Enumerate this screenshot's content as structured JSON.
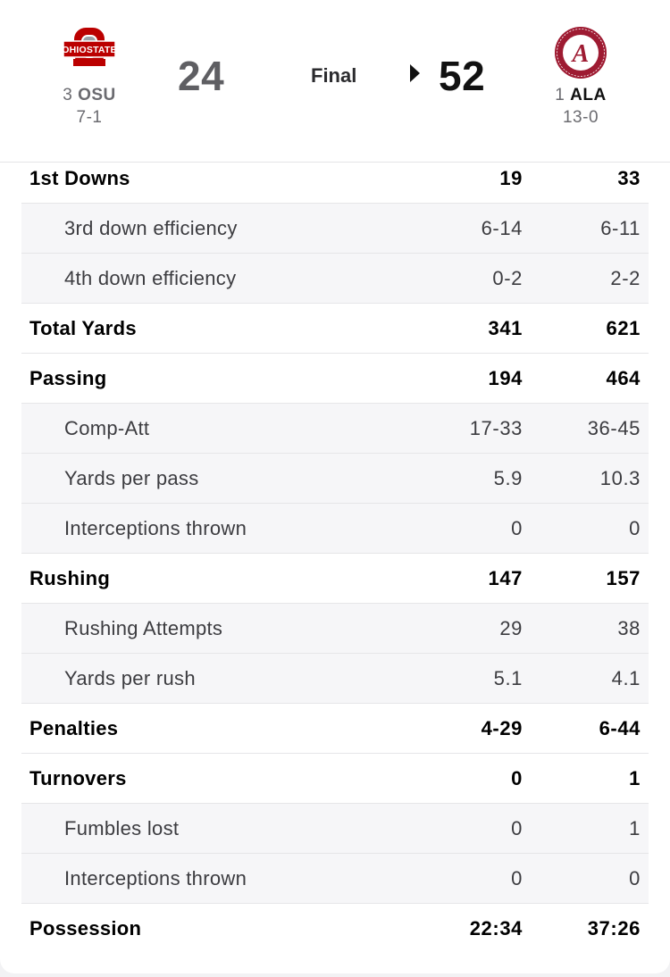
{
  "game": {
    "status": "Final",
    "away": {
      "rank": "3",
      "abbr": "OSU",
      "record": "7-1",
      "score": "24",
      "logo_icon": "ohio-state-logo-icon",
      "color": "#bb0000"
    },
    "home": {
      "rank": "1",
      "abbr": "ALA",
      "record": "13-0",
      "score": "52",
      "logo_icon": "alabama-logo-icon",
      "color": "#9e1b32"
    },
    "winner": "home"
  },
  "stats": [
    {
      "label": "1st Downs",
      "away": "19",
      "home": "33",
      "sub": false
    },
    {
      "label": "3rd down efficiency",
      "away": "6-14",
      "home": "6-11",
      "sub": true
    },
    {
      "label": "4th down efficiency",
      "away": "0-2",
      "home": "2-2",
      "sub": true
    },
    {
      "label": "Total Yards",
      "away": "341",
      "home": "621",
      "sub": false
    },
    {
      "label": "Passing",
      "away": "194",
      "home": "464",
      "sub": false
    },
    {
      "label": "Comp-Att",
      "away": "17-33",
      "home": "36-45",
      "sub": true
    },
    {
      "label": "Yards per pass",
      "away": "5.9",
      "home": "10.3",
      "sub": true
    },
    {
      "label": "Interceptions thrown",
      "away": "0",
      "home": "0",
      "sub": true
    },
    {
      "label": "Rushing",
      "away": "147",
      "home": "157",
      "sub": false
    },
    {
      "label": "Rushing Attempts",
      "away": "29",
      "home": "38",
      "sub": true
    },
    {
      "label": "Yards per rush",
      "away": "5.1",
      "home": "4.1",
      "sub": true
    },
    {
      "label": "Penalties",
      "away": "4-29",
      "home": "6-44",
      "sub": false
    },
    {
      "label": "Turnovers",
      "away": "0",
      "home": "1",
      "sub": false
    },
    {
      "label": "Fumbles lost",
      "away": "0",
      "home": "1",
      "sub": true
    },
    {
      "label": "Interceptions thrown",
      "away": "0",
      "home": "0",
      "sub": true
    },
    {
      "label": "Possession",
      "away": "22:34",
      "home": "37:26",
      "sub": false
    }
  ]
}
